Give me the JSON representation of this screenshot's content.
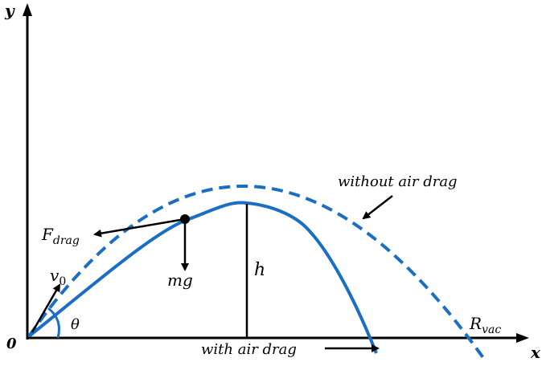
{
  "axes": {
    "y_label": "y",
    "x_label": "x",
    "origin_label": "0"
  },
  "labels": {
    "without_drag": "without air drag",
    "with_drag": "with air drag",
    "force_main": "F",
    "force_sub": "drag",
    "velocity_main": "v",
    "velocity_sub": "0",
    "angle": "θ",
    "weight": "mg",
    "height": "h",
    "range_main": "R",
    "range_sub": "vac"
  },
  "colors": {
    "trajectory": "#1a6fc4",
    "axes": "#000000"
  }
}
